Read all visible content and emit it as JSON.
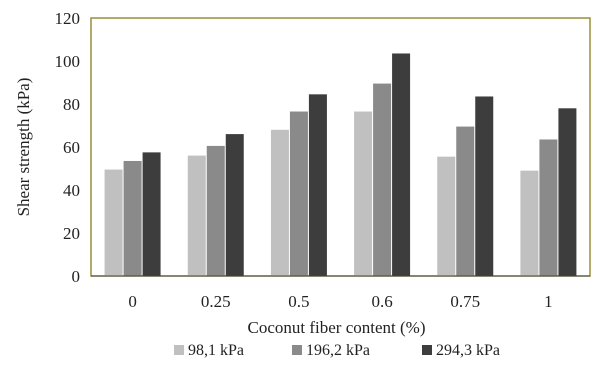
{
  "chart_data": {
    "type": "bar",
    "categories": [
      "0",
      "0.25",
      "0.5",
      "0.6",
      "0.75",
      "1"
    ],
    "series": [
      {
        "name": "98,1 kPa",
        "values": [
          49.5,
          56,
          68,
          76.5,
          55.5,
          49
        ],
        "color": "#c0c0c0"
      },
      {
        "name": "196,2 kPa",
        "values": [
          53.5,
          60.5,
          76.5,
          89.5,
          69.5,
          63.5
        ],
        "color": "#8a8a8a"
      },
      {
        "name": "294,3 kPa",
        "values": [
          57.5,
          66,
          84.5,
          103.5,
          83.5,
          78
        ],
        "color": "#3d3d3d"
      }
    ],
    "xlabel": "Coconut fiber content (%)",
    "ylabel": "Shear strength (kPa)",
    "ylim": [
      0,
      120
    ],
    "yticks": [
      "0",
      "20",
      "40",
      "60",
      "80",
      "100",
      "120"
    ],
    "grid": false,
    "legend_position": "bottom",
    "frame_color": "#9a8f3c"
  }
}
